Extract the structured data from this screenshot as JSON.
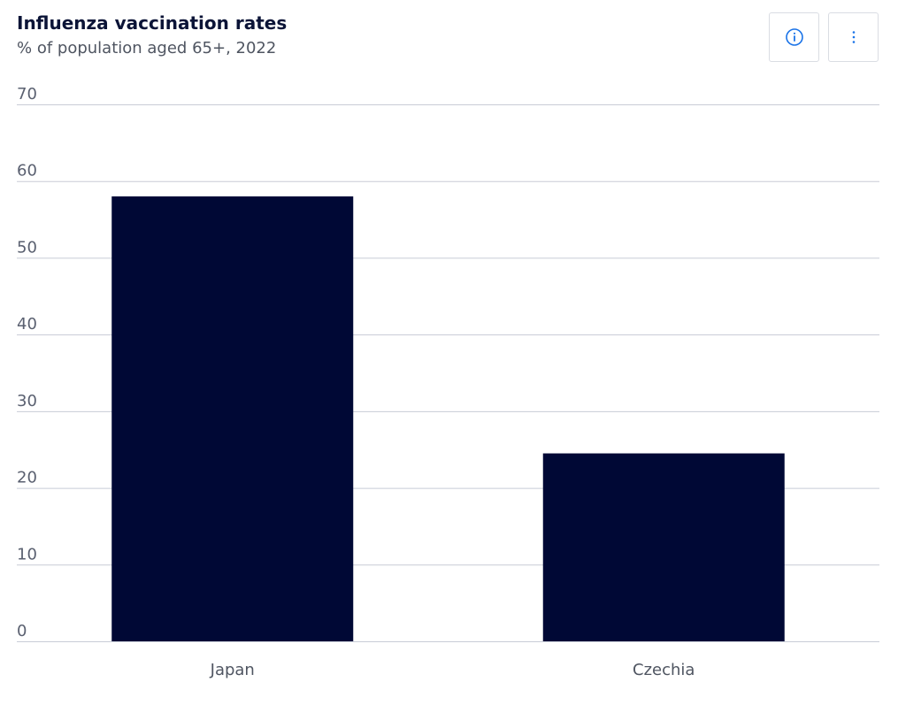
{
  "header": {
    "title": "Influenza vaccination rates",
    "subtitle": "% of population aged 65+, 2022"
  },
  "toolbar": {
    "info_icon": "info-icon",
    "more_icon": "more-vertical-icon"
  },
  "colors": {
    "bar": "#000835",
    "grid": "#c8ccd6",
    "axis_text": "#5a6070",
    "title": "#0b1437",
    "accent_icon": "#1a73e8"
  },
  "chart_data": {
    "type": "bar",
    "title": "Influenza vaccination rates",
    "subtitle": "% of population aged 65+, 2022",
    "xlabel": "",
    "ylabel": "",
    "categories": [
      "Japan",
      "Czechia"
    ],
    "values": [
      58.0,
      24.5
    ],
    "ylim": [
      0,
      70
    ],
    "yticks": [
      0,
      10,
      20,
      30,
      40,
      50,
      60,
      70
    ],
    "grid": true,
    "legend": "none"
  }
}
